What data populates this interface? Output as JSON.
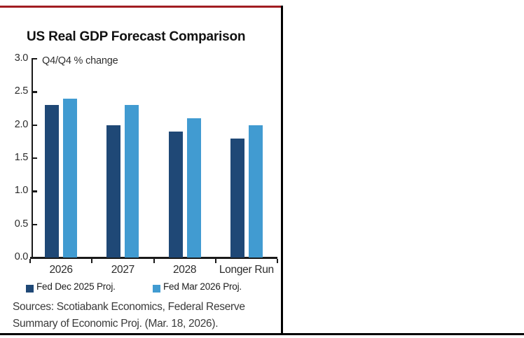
{
  "page": {
    "top_rule_color": "#A11D22",
    "divider_color": "#000000",
    "background": "#ffffff"
  },
  "chart_data": {
    "type": "bar",
    "title": "US Real GDP Forecast Comparison",
    "subtitle": "Q4/Q4 % change",
    "categories": [
      "2026",
      "2027",
      "2028",
      "Longer Run"
    ],
    "series": [
      {
        "name": "Fed Dec 2025 Proj.",
        "color": "#1F4876",
        "values": [
          2.3,
          2.0,
          1.9,
          1.8
        ]
      },
      {
        "name": "Fed Mar 2026 Proj.",
        "color": "#419BD1",
        "values": [
          2.4,
          2.3,
          2.1,
          2.0
        ]
      }
    ],
    "ylabel": "",
    "xlabel": "",
    "ylim": [
      0.0,
      3.0
    ],
    "ytick_step": 0.5,
    "ytick_labels": [
      "3.0",
      "2.5",
      "2.0",
      "1.5",
      "1.0",
      "0.5",
      "0.0"
    ],
    "grid": false,
    "legend_position": "bottom",
    "axis_color": "#1a1a1a"
  },
  "sources": {
    "line1": "Sources: Scotiabank Economics, Federal Reserve",
    "line2": "Summary of Economic Proj. (Mar. 18, 2026)."
  }
}
